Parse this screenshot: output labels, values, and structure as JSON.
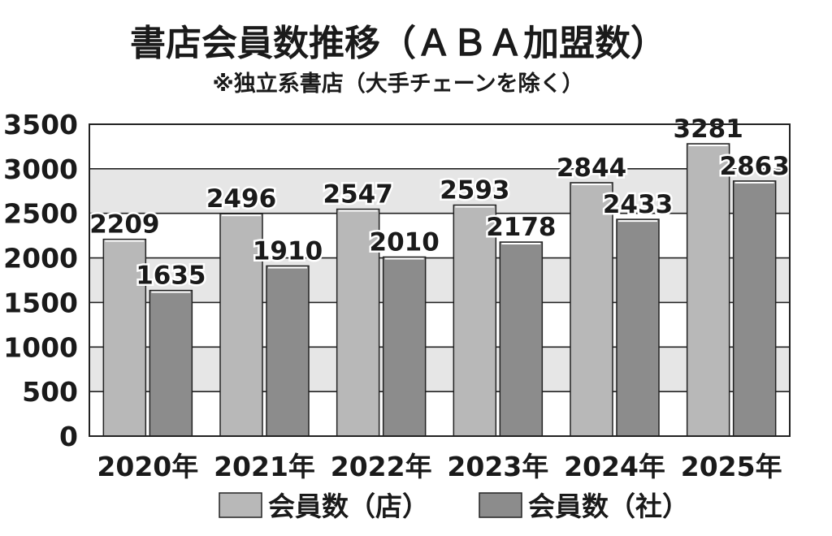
{
  "chart_data": {
    "type": "bar",
    "title": "書店会員数推移（ＡＢＡ加盟数）",
    "subtitle": "※独立系書店（大手チェーンを除く）",
    "categories": [
      "2020年",
      "2021年",
      "2022年",
      "2023年",
      "2024年",
      "2025年"
    ],
    "series": [
      {
        "name": "会員数（店）",
        "values": [
          2209,
          2496,
          2547,
          2593,
          2844,
          3281
        ],
        "color": "#b8b8b8"
      },
      {
        "name": "会員数（社）",
        "values": [
          1635,
          1910,
          2010,
          2178,
          2433,
          2863
        ],
        "color": "#8c8c8c"
      }
    ],
    "ylim": [
      0,
      3500
    ],
    "yticks": [
      0,
      500,
      1000,
      1500,
      2000,
      2500,
      3000,
      3500
    ],
    "grid": true,
    "legend_position": "bottom",
    "band_colors": [
      "#ffffff",
      "#e6e6e6"
    ]
  }
}
